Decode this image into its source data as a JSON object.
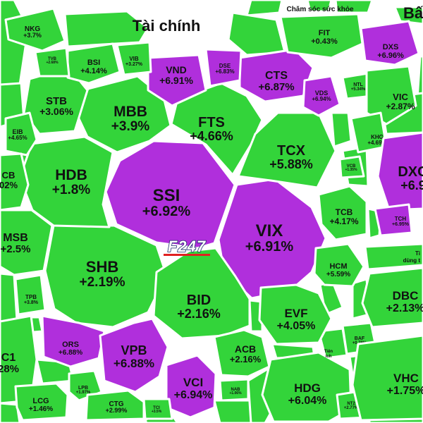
{
  "chart_data": {
    "type": "treemap",
    "colors": {
      "up": "#33d43a",
      "ceiling": "#b02fdc",
      "border": "#ffffff",
      "text": "#111111"
    },
    "sectors": [
      {
        "name": "Tài chính"
      },
      {
        "name": "Chăm sóc sức khỏe"
      },
      {
        "name": "Bấ"
      },
      {
        "name": "Ti dùng t"
      },
      {
        "name": "Tiện ích"
      }
    ],
    "cells": [
      {
        "ticker": "SSI",
        "change": "+6.92%",
        "status": "ceiling"
      },
      {
        "ticker": "VIX",
        "change": "+6.91%",
        "status": "ceiling"
      },
      {
        "ticker": "SHB",
        "change": "+2.19%",
        "status": "up"
      },
      {
        "ticker": "BID",
        "change": "+2.16%",
        "status": "up"
      },
      {
        "ticker": "HDB",
        "change": "+1.8%",
        "status": "up"
      },
      {
        "ticker": "MBB",
        "change": "+3.9%",
        "status": "up"
      },
      {
        "ticker": "FTS",
        "change": "+4.66%",
        "status": "up"
      },
      {
        "ticker": "TCX",
        "change": "+5.88%",
        "status": "up"
      },
      {
        "ticker": "STB",
        "change": "+3.06%",
        "status": "up"
      },
      {
        "ticker": "VND",
        "change": "+6.91%",
        "status": "ceiling"
      },
      {
        "ticker": "CTS",
        "change": "+6.87%",
        "status": "ceiling"
      },
      {
        "ticker": "DSE",
        "change": "+6.83%",
        "status": "ceiling"
      },
      {
        "ticker": "VDS",
        "change": "+6.94%",
        "status": "ceiling"
      },
      {
        "ticker": "BSI",
        "change": "+4.14%",
        "status": "up"
      },
      {
        "ticker": "VIB",
        "change": "+3.27%",
        "status": "up"
      },
      {
        "ticker": "TVB",
        "change": "+2.68%",
        "status": "up"
      },
      {
        "ticker": "NKG",
        "change": "+3.7%",
        "status": "up"
      },
      {
        "ticker": "EIB",
        "change": "+4.65%",
        "status": "up"
      },
      {
        "ticker": "CB",
        "change": "02%",
        "status": "up"
      },
      {
        "ticker": "MSB",
        "change": "+2.5%",
        "status": "up"
      },
      {
        "ticker": "TPB",
        "change": "+3.8%",
        "status": "up"
      },
      {
        "ticker": "C1",
        "change": "28%",
        "status": "up"
      },
      {
        "ticker": "ORS",
        "change": "+6.88%",
        "status": "ceiling"
      },
      {
        "ticker": "VPB",
        "change": "+6.88%",
        "status": "ceiling"
      },
      {
        "ticker": "VCI",
        "change": "+6.94%",
        "status": "ceiling"
      },
      {
        "ticker": "ACB",
        "change": "+2.16%",
        "status": "up"
      },
      {
        "ticker": "EVF",
        "change": "+4.05%",
        "status": "up"
      },
      {
        "ticker": "HCM",
        "change": "+5.59%",
        "status": "up"
      },
      {
        "ticker": "TCB",
        "change": "+4.17%",
        "status": "up"
      },
      {
        "ticker": "VCB",
        "change": "+1.35%",
        "status": "up"
      },
      {
        "ticker": "LCG",
        "change": "+1.46%",
        "status": "up"
      },
      {
        "ticker": "LPB",
        "change": "+1.97%",
        "status": "up"
      },
      {
        "ticker": "CTG",
        "change": "+2.99%",
        "status": "up"
      },
      {
        "ticker": "TCI",
        "change": "+3.5%",
        "status": "up"
      },
      {
        "ticker": "NAB",
        "change": "+1.06%",
        "status": "up"
      },
      {
        "ticker": "HDG",
        "change": "+6.04%",
        "status": "up"
      },
      {
        "ticker": "NT2",
        "change": "+2.77%",
        "status": "up"
      },
      {
        "ticker": "BAF",
        "change": "+0.78%",
        "status": "up"
      },
      {
        "ticker": "DBC",
        "change": "+2.13%",
        "status": "up"
      },
      {
        "ticker": "VHC",
        "change": "+1.75%",
        "status": "up"
      },
      {
        "ticker": "FIT",
        "change": "+0.43%",
        "status": "up"
      },
      {
        "ticker": "DXS",
        "change": "+6.96%",
        "status": "ceiling"
      },
      {
        "ticker": "NTL",
        "change": "+5.34%",
        "status": "up"
      },
      {
        "ticker": "VIC",
        "change": "+2.87%",
        "status": "up"
      },
      {
        "ticker": "KHG",
        "change": "+4.69%",
        "status": "up"
      },
      {
        "ticker": "DXG",
        "change": "+6.9",
        "status": "ceiling"
      },
      {
        "ticker": "TCH",
        "change": "+6.95%",
        "status": "ceiling"
      }
    ]
  },
  "watermark": {
    "text": "F247"
  }
}
